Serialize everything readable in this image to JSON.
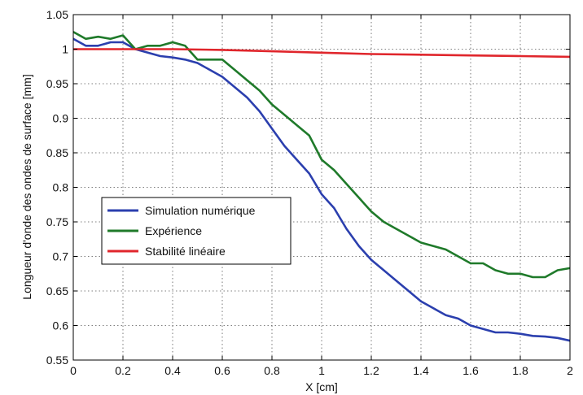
{
  "chart_data": {
    "type": "line",
    "title": "",
    "xlabel": "X [cm]",
    "ylabel": "Longueur d'onde des ondes de surface [mm]",
    "xlim": [
      0,
      2
    ],
    "ylim": [
      0.55,
      1.05
    ],
    "xticks": [
      0,
      0.2,
      0.4,
      0.6,
      0.8,
      1,
      1.2,
      1.4,
      1.6,
      1.8,
      2
    ],
    "yticks": [
      0.55,
      0.6,
      0.65,
      0.7,
      0.75,
      0.8,
      0.85,
      0.9,
      0.95,
      1,
      1.05
    ],
    "xtick_labels": [
      "0",
      "0.2",
      "0.4",
      "0.6",
      "0.8",
      "1",
      "1.2",
      "1.4",
      "1.6",
      "1.8",
      "2"
    ],
    "ytick_labels": [
      "0.55",
      "0.6",
      "0.65",
      "0.7",
      "0.75",
      "0.8",
      "0.85",
      "0.9",
      "0.95",
      "1",
      "1.05"
    ],
    "grid": true,
    "legend_position": "middle-left",
    "series": [
      {
        "name": "Simulation numérique",
        "color": "#2b3fae",
        "x": [
          0,
          0.05,
          0.1,
          0.15,
          0.2,
          0.25,
          0.3,
          0.35,
          0.4,
          0.45,
          0.5,
          0.55,
          0.6,
          0.65,
          0.7,
          0.75,
          0.8,
          0.85,
          0.9,
          0.95,
          1.0,
          1.05,
          1.1,
          1.15,
          1.2,
          1.25,
          1.3,
          1.35,
          1.4,
          1.45,
          1.5,
          1.55,
          1.6,
          1.65,
          1.7,
          1.75,
          1.8,
          1.85,
          1.9,
          1.95,
          2.0
        ],
        "y": [
          1.015,
          1.005,
          1.005,
          1.01,
          1.01,
          1.0,
          0.995,
          0.99,
          0.988,
          0.985,
          0.98,
          0.97,
          0.96,
          0.945,
          0.93,
          0.91,
          0.885,
          0.86,
          0.84,
          0.82,
          0.79,
          0.77,
          0.74,
          0.715,
          0.695,
          0.68,
          0.665,
          0.65,
          0.635,
          0.625,
          0.615,
          0.61,
          0.6,
          0.595,
          0.59,
          0.59,
          0.588,
          0.585,
          0.584,
          0.582,
          0.578
        ]
      },
      {
        "name": "Expérience",
        "color": "#1f7a2a",
        "x": [
          0,
          0.05,
          0.1,
          0.15,
          0.2,
          0.25,
          0.3,
          0.35,
          0.4,
          0.45,
          0.5,
          0.55,
          0.6,
          0.65,
          0.7,
          0.75,
          0.8,
          0.85,
          0.9,
          0.95,
          1.0,
          1.05,
          1.1,
          1.15,
          1.2,
          1.25,
          1.3,
          1.35,
          1.4,
          1.45,
          1.5,
          1.55,
          1.6,
          1.65,
          1.7,
          1.75,
          1.8,
          1.85,
          1.9,
          1.95,
          2.0
        ],
        "y": [
          1.025,
          1.015,
          1.018,
          1.015,
          1.02,
          1.0,
          1.005,
          1.005,
          1.01,
          1.005,
          0.985,
          0.985,
          0.985,
          0.97,
          0.955,
          0.94,
          0.92,
          0.905,
          0.89,
          0.875,
          0.84,
          0.825,
          0.805,
          0.785,
          0.765,
          0.75,
          0.74,
          0.73,
          0.72,
          0.715,
          0.71,
          0.7,
          0.69,
          0.69,
          0.68,
          0.675,
          0.675,
          0.67,
          0.67,
          0.68,
          0.683
        ]
      },
      {
        "name": "Stabilité linéaire",
        "color": "#e0262c",
        "x": [
          0,
          0.2,
          0.4,
          0.6,
          0.8,
          1.0,
          1.2,
          1.4,
          1.6,
          1.8,
          2.0
        ],
        "y": [
          1.0,
          1.0,
          1.0,
          0.999,
          0.997,
          0.995,
          0.993,
          0.992,
          0.991,
          0.99,
          0.989
        ]
      }
    ]
  }
}
